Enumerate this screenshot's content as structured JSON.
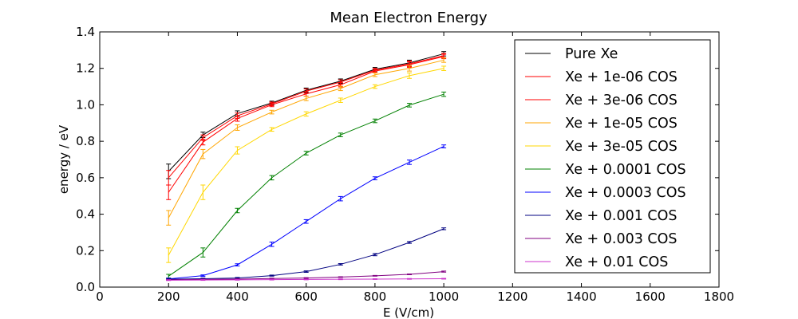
{
  "chart_data": {
    "type": "line",
    "title": "Mean Electron Energy",
    "xlabel": "E (V/cm)",
    "ylabel": "energy / eV",
    "xlim": [
      0,
      1800
    ],
    "ylim": [
      0,
      1.4
    ],
    "xticks": [
      "0",
      "200",
      "400",
      "600",
      "800",
      "1000",
      "1200",
      "1400",
      "1600",
      "1800"
    ],
    "yticks": [
      "0.0",
      "0.2",
      "0.4",
      "0.6",
      "0.8",
      "1.0",
      "1.2",
      "1.4"
    ],
    "grid": false,
    "legend_position": "top-right",
    "x": [
      200,
      300,
      400,
      500,
      600,
      700,
      800,
      900,
      1000
    ],
    "series": [
      {
        "name": "Pure Xe",
        "color": "#000000",
        "values": [
          0.635,
          0.835,
          0.952,
          1.01,
          1.08,
          1.13,
          1.195,
          1.23,
          1.28
        ],
        "errors": [
          0.04,
          0.015,
          0.015,
          0.01,
          0.012,
          0.012,
          0.01,
          0.015,
          0.012
        ]
      },
      {
        "name": "Xe + 1e-06 COS",
        "color": "#ff0000",
        "values": [
          0.6,
          0.82,
          0.94,
          1.005,
          1.075,
          1.125,
          1.19,
          1.225,
          1.27
        ],
        "errors": [
          0.04,
          0.015,
          0.015,
          0.01,
          0.012,
          0.012,
          0.01,
          0.015,
          0.012
        ]
      },
      {
        "name": "Xe + 3e-06 COS",
        "color": "#ff0000",
        "values": [
          0.52,
          0.795,
          0.925,
          1.0,
          1.06,
          1.11,
          1.185,
          1.22,
          1.265
        ],
        "errors": [
          0.04,
          0.015,
          0.015,
          0.01,
          0.012,
          0.012,
          0.01,
          0.015,
          0.012
        ]
      },
      {
        "name": "Xe + 1e-05 COS",
        "color": "#ffa500",
        "values": [
          0.38,
          0.73,
          0.875,
          0.96,
          1.035,
          1.09,
          1.165,
          1.2,
          1.245
        ],
        "errors": [
          0.04,
          0.025,
          0.015,
          0.01,
          0.012,
          0.012,
          0.01,
          0.015,
          0.012
        ]
      },
      {
        "name": "Xe + 3e-05 COS",
        "color": "#ffd700",
        "values": [
          0.175,
          0.52,
          0.75,
          0.865,
          0.95,
          1.025,
          1.1,
          1.16,
          1.2
        ],
        "errors": [
          0.04,
          0.04,
          0.02,
          0.01,
          0.012,
          0.012,
          0.01,
          0.015,
          0.012
        ]
      },
      {
        "name": "Xe + 0.0001 COS",
        "color": "#008000",
        "values": [
          0.06,
          0.19,
          0.42,
          0.6,
          0.735,
          0.835,
          0.912,
          0.998,
          1.058
        ],
        "errors": [
          0.01,
          0.025,
          0.012,
          0.012,
          0.01,
          0.01,
          0.01,
          0.01,
          0.012
        ]
      },
      {
        "name": "Xe + 0.0003 COS",
        "color": "#0000ff",
        "values": [
          0.045,
          0.063,
          0.122,
          0.235,
          0.36,
          0.485,
          0.597,
          0.685,
          0.772
        ],
        "errors": [
          0.004,
          0.004,
          0.006,
          0.012,
          0.01,
          0.012,
          0.008,
          0.012,
          0.008
        ]
      },
      {
        "name": "Xe + 0.001 COS",
        "color": "#000080",
        "values": [
          0.043,
          0.046,
          0.05,
          0.063,
          0.085,
          0.125,
          0.178,
          0.245,
          0.32
        ],
        "errors": [
          0.003,
          0.003,
          0.003,
          0.003,
          0.004,
          0.004,
          0.006,
          0.005,
          0.005
        ]
      },
      {
        "name": "Xe + 0.003 COS",
        "color": "#800080",
        "values": [
          0.04,
          0.042,
          0.044,
          0.047,
          0.05,
          0.055,
          0.062,
          0.07,
          0.085
        ],
        "errors": [
          0.002,
          0.002,
          0.002,
          0.002,
          0.002,
          0.002,
          0.002,
          0.002,
          0.003
        ]
      },
      {
        "name": "Xe + 0.01 COS",
        "color": "#cc33cc",
        "values": [
          0.038,
          0.039,
          0.04,
          0.041,
          0.042,
          0.043,
          0.044,
          0.045,
          0.046
        ],
        "errors": [
          0.002,
          0.002,
          0.002,
          0.002,
          0.002,
          0.002,
          0.002,
          0.002,
          0.002
        ]
      }
    ]
  }
}
